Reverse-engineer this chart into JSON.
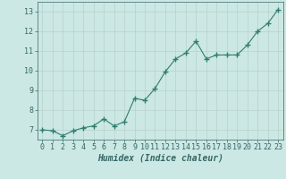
{
  "x": [
    0,
    1,
    2,
    3,
    4,
    5,
    6,
    7,
    8,
    9,
    10,
    11,
    12,
    13,
    14,
    15,
    16,
    17,
    18,
    19,
    20,
    21,
    22,
    23
  ],
  "y": [
    7.0,
    6.95,
    6.7,
    6.95,
    7.1,
    7.2,
    7.55,
    7.2,
    7.4,
    8.6,
    8.5,
    9.1,
    9.95,
    10.6,
    10.9,
    11.5,
    10.6,
    10.8,
    10.8,
    10.8,
    11.3,
    12.0,
    12.4,
    13.1
  ],
  "line_color": "#2e7d6e",
  "marker": "+",
  "marker_size": 4,
  "bg_color": "#cce8e4",
  "grid_color_major": "#b8d0cc",
  "grid_color_minor": "#d4e8e4",
  "axis_color": "#336666",
  "xlabel": "Humidex (Indice chaleur)",
  "xlim": [
    -0.5,
    23.5
  ],
  "ylim": [
    6.5,
    13.5
  ],
  "yticks": [
    7,
    8,
    9,
    10,
    11,
    12,
    13
  ],
  "xticks": [
    0,
    1,
    2,
    3,
    4,
    5,
    6,
    7,
    8,
    9,
    10,
    11,
    12,
    13,
    14,
    15,
    16,
    17,
    18,
    19,
    20,
    21,
    22,
    23
  ],
  "tick_fontsize": 6,
  "label_fontsize": 7
}
